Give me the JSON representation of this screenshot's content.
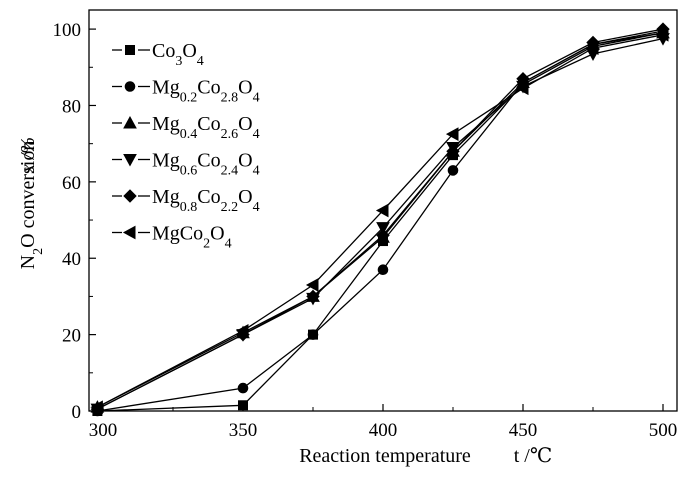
{
  "chart_data": {
    "type": "line",
    "xlabel": "Reaction temperature",
    "xlabel_unit": "t /℃",
    "ylabel": "N₂O conversion",
    "ylabel_unit": "x /%",
    "xlim": [
      295,
      505
    ],
    "ylim": [
      0,
      105
    ],
    "xticks": [
      300,
      350,
      400,
      450,
      500
    ],
    "yticks": [
      0,
      20,
      40,
      60,
      80,
      100
    ],
    "x": [
      298,
      350,
      375,
      400,
      425,
      450,
      475,
      500
    ],
    "legend_position": "top-left",
    "grid": false,
    "series": [
      {
        "name": "Co3O4",
        "label_parts": [
          [
            "Co",
            ""
          ],
          [
            "3",
            "sub"
          ],
          [
            "O",
            ""
          ],
          [
            "4",
            "sub"
          ]
        ],
        "marker": "square",
        "values": [
          0,
          1.5,
          20,
          44.5,
          67,
          85.5,
          95.5,
          99
        ]
      },
      {
        "name": "Mg0.2Co2.8O4",
        "label_parts": [
          [
            "Mg",
            ""
          ],
          [
            "0.2",
            "sub"
          ],
          [
            "Co",
            ""
          ],
          [
            "2.8",
            "sub"
          ],
          [
            "O",
            ""
          ],
          [
            "4",
            "sub"
          ]
        ],
        "marker": "circle",
        "values": [
          0,
          6,
          20,
          37,
          63,
          86,
          96,
          99.5
        ]
      },
      {
        "name": "Mg0.4Co2.6O4",
        "label_parts": [
          [
            "Mg",
            ""
          ],
          [
            "0.4",
            "sub"
          ],
          [
            "Co",
            ""
          ],
          [
            "2.6",
            "sub"
          ],
          [
            "O",
            ""
          ],
          [
            "4",
            "sub"
          ]
        ],
        "marker": "triangle-up",
        "values": [
          1,
          20.5,
          30,
          45.5,
          68,
          86,
          96,
          99
        ]
      },
      {
        "name": "Mg0.6Co2.4O4",
        "label_parts": [
          [
            "Mg",
            ""
          ],
          [
            "0.6",
            "sub"
          ],
          [
            "Co",
            ""
          ],
          [
            "2.4",
            "sub"
          ],
          [
            "O",
            ""
          ],
          [
            "4",
            "sub"
          ]
        ],
        "marker": "triangle-down",
        "values": [
          0.5,
          20,
          29.5,
          48,
          69,
          85,
          93.5,
          97.5
        ]
      },
      {
        "name": "Mg0.8Co2.2O4",
        "label_parts": [
          [
            "Mg",
            ""
          ],
          [
            "0.8",
            "sub"
          ],
          [
            "Co",
            ""
          ],
          [
            "2.2",
            "sub"
          ],
          [
            "O",
            ""
          ],
          [
            "4",
            "sub"
          ]
        ],
        "marker": "diamond",
        "values": [
          0.5,
          20,
          30,
          46,
          68,
          87,
          96.5,
          100
        ]
      },
      {
        "name": "MgCo2O4",
        "label_parts": [
          [
            "MgCo",
            ""
          ],
          [
            "2",
            "sub"
          ],
          [
            "O",
            ""
          ],
          [
            "4",
            "sub"
          ]
        ],
        "marker": "triangle-left",
        "values": [
          1,
          21,
          33,
          52.5,
          72.5,
          84.5,
          95,
          98.5
        ]
      }
    ]
  }
}
